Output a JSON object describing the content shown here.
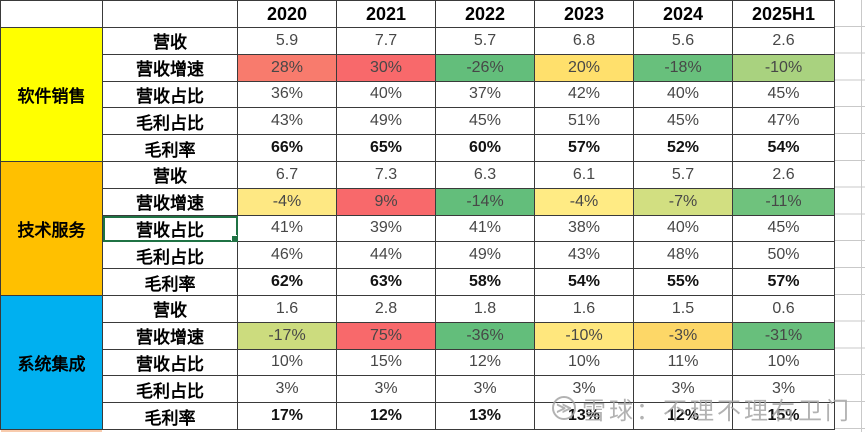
{
  "columns": {
    "years": [
      "2020",
      "2021",
      "2022",
      "2023",
      "2024",
      "2025H1"
    ]
  },
  "groups": [
    {
      "name": "软件销售",
      "color": "#FFFF00",
      "rows": [
        {
          "label": "营收",
          "values": [
            "5.9",
            "7.7",
            "5.7",
            "6.8",
            "5.6",
            "2.6"
          ]
        },
        {
          "label": "营收增速",
          "values": [
            "28%",
            "30%",
            "-26%",
            "20%",
            "-18%",
            "-10%"
          ],
          "cell_colors": [
            "#F87B6D",
            "#F8696B",
            "#63BE7B",
            "#FFE06C",
            "#68C07C",
            "#A9D27F"
          ]
        },
        {
          "label": "营收占比",
          "values": [
            "36%",
            "40%",
            "37%",
            "42%",
            "40%",
            "45%"
          ]
        },
        {
          "label": "毛利占比",
          "values": [
            "43%",
            "49%",
            "45%",
            "51%",
            "45%",
            "47%"
          ]
        },
        {
          "label": "毛利率",
          "values": [
            "66%",
            "65%",
            "60%",
            "57%",
            "52%",
            "54%"
          ],
          "bold": true
        }
      ]
    },
    {
      "name": "技术服务",
      "color": "#FFC000",
      "rows": [
        {
          "label": "营收",
          "values": [
            "6.7",
            "7.3",
            "6.3",
            "6.1",
            "5.7",
            "2.6"
          ]
        },
        {
          "label": "营收增速",
          "values": [
            "-4%",
            "9%",
            "-14%",
            "-4%",
            "-7%",
            "-11%"
          ],
          "cell_colors": [
            "#FEE883",
            "#F8696B",
            "#63BE7B",
            "#FFEB84",
            "#D2DF81",
            "#6FC27D"
          ]
        },
        {
          "label": "营收占比",
          "values": [
            "41%",
            "39%",
            "41%",
            "38%",
            "40%",
            "45%"
          ],
          "selected": true
        },
        {
          "label": "毛利占比",
          "values": [
            "46%",
            "44%",
            "49%",
            "43%",
            "48%",
            "50%"
          ]
        },
        {
          "label": "毛利率",
          "values": [
            "62%",
            "63%",
            "58%",
            "54%",
            "55%",
            "57%"
          ],
          "bold": true
        }
      ]
    },
    {
      "name": "系统集成",
      "color": "#00B0F0",
      "rows": [
        {
          "label": "营收",
          "values": [
            "1.6",
            "2.8",
            "1.8",
            "1.6",
            "1.5",
            "0.6"
          ]
        },
        {
          "label": "营收增速",
          "values": [
            "-17%",
            "75%",
            "-36%",
            "-10%",
            "-3%",
            "-31%"
          ],
          "cell_colors": [
            "#CCDC7E",
            "#F8696B",
            "#63BE7B",
            "#FFE77D",
            "#FDD767",
            "#68BF7C"
          ]
        },
        {
          "label": "营收占比",
          "values": [
            "10%",
            "15%",
            "12%",
            "10%",
            "11%",
            "10%"
          ]
        },
        {
          "label": "毛利占比",
          "values": [
            "3%",
            "3%",
            "3%",
            "3%",
            "3%",
            "3%"
          ]
        },
        {
          "label": "毛利率",
          "values": [
            "17%",
            "12%",
            "13%",
            "13%",
            "12%",
            "15%"
          ],
          "bold": true
        }
      ]
    }
  ],
  "next_group_peek_color": "#F8CBAD",
  "selection_color": "#1F7244",
  "watermark": {
    "logo": "xueqiu-logo",
    "text": "雪球：不理不理右卫门"
  }
}
